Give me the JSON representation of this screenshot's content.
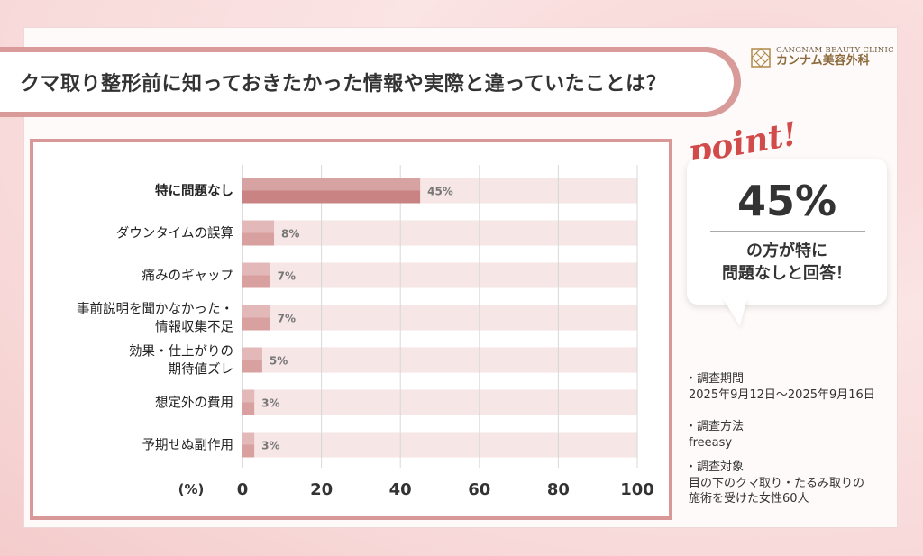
{
  "title": "クマ取り整形前に知っておきたかった情報や実際と違っていたことは？",
  "logo": {
    "en": "GANGNAM BEAUTY CLINIC",
    "ja": "カンナム美容外科",
    "mark": "lattice-logo-icon"
  },
  "point": {
    "word": "point!",
    "value": "45%",
    "text_line1": "の方が特に",
    "text_line2": "問題なしと回答！"
  },
  "info": [
    {
      "label": "調査期間",
      "lines": [
        "2025年9月12日〜2025年9月16日"
      ]
    },
    {
      "label": "調査方法",
      "lines": [
        "freeasy"
      ]
    },
    {
      "label": "調査対象",
      "lines": [
        "目の下のクマ取り・たるみ取りの",
        "施術を受けた女性60人"
      ]
    }
  ],
  "colors": {
    "accent": "#d99a9a",
    "bar": "#d9a0a0",
    "bar_highlight": "#c98383",
    "track": "#f6e6e6",
    "point_red": "#d24b4b"
  },
  "chart_data": {
    "type": "bar",
    "orientation": "horizontal",
    "categories": [
      [
        "特に問題なし"
      ],
      [
        "ダウンタイムの誤算"
      ],
      [
        "痛みのギャップ"
      ],
      [
        "事前説明を聞かなかった・",
        "情報収集不足"
      ],
      [
        "効果・仕上がりの",
        "期待値ズレ"
      ],
      [
        "想定外の費用"
      ],
      [
        "予期せぬ副作用"
      ]
    ],
    "values": [
      45,
      8,
      7,
      7,
      5,
      3,
      3
    ],
    "value_labels": [
      "45%",
      "8%",
      "7%",
      "7%",
      "5%",
      "3%",
      "3%"
    ],
    "highlight_index": 0,
    "xlim": [
      0,
      100
    ],
    "xticks": [
      "0",
      "20",
      "40",
      "60",
      "80",
      "100"
    ],
    "xtick_values": [
      0,
      20,
      40,
      60,
      80,
      100
    ],
    "xlabel": "(%)",
    "grid": true
  }
}
